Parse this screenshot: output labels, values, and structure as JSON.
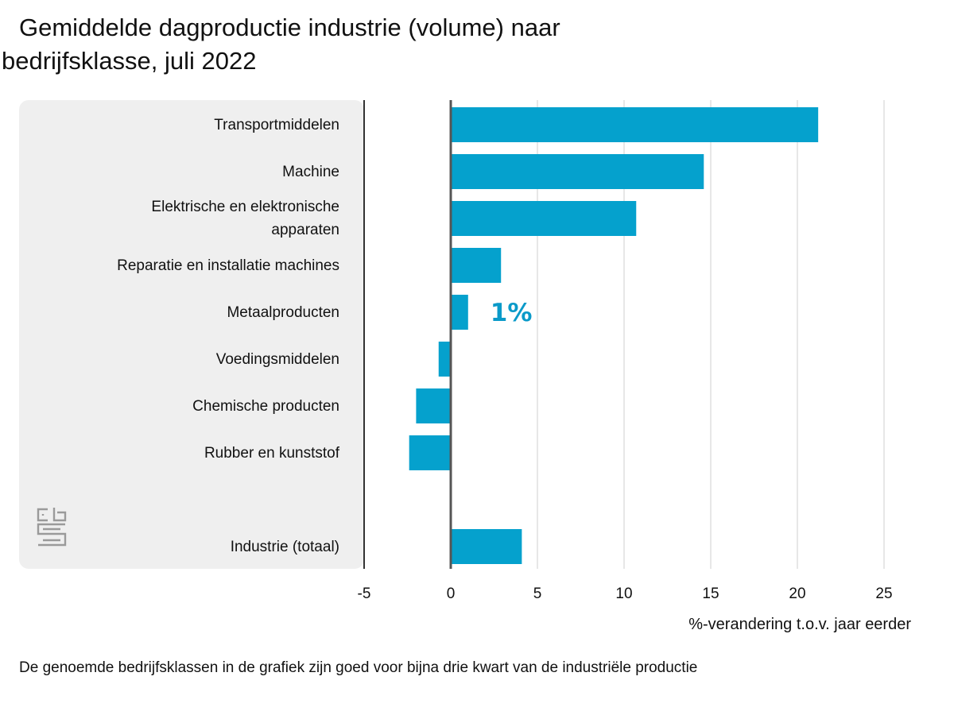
{
  "title_line1": "Gemiddelde dagproductie industrie (volume) naar",
  "title_line2": "bedrijfsklasse, juli 2022",
  "footnote": "De genoemde bedrijfsklassen in de grafiek zijn goed voor bijna drie kwart van de industriële productie",
  "logo_icon": "cbs-logo-icon",
  "chart_data": {
    "type": "bar",
    "orientation": "horizontal",
    "categories": [
      "Transportmiddelen",
      "Machine",
      "Elektrische en elektronische apparaten",
      "Reparatie en installatie machines",
      "Metaalproducten",
      "Voedingsmiddelen",
      "Chemische producten",
      "Rubber en kunststof",
      "",
      "Industrie (totaal)"
    ],
    "category_lines": [
      [
        "Transportmiddelen"
      ],
      [
        "Machine"
      ],
      [
        "Elektrische en elektronische",
        "apparaten"
      ],
      [
        "Reparatie en installatie machines"
      ],
      [
        "Metaalproducten"
      ],
      [
        "Voedingsmiddelen"
      ],
      [
        "Chemische producten"
      ],
      [
        "Rubber en kunststof"
      ],
      [],
      [
        "Industrie (totaal)"
      ]
    ],
    "values": [
      21.2,
      14.6,
      10.7,
      2.9,
      1.0,
      -0.7,
      -2.0,
      -2.4,
      null,
      4.1
    ],
    "xlabel": "%-verandering t.o.v. jaar eerder",
    "xlim": [
      -5,
      25
    ],
    "xticks": [
      -5,
      0,
      5,
      10,
      15,
      20,
      25
    ],
    "xtick_labels": [
      "-5",
      "0",
      "5",
      "10",
      "15",
      "20",
      "25"
    ],
    "grid": true,
    "bar_color": "#05a1cd",
    "annotation": {
      "text": "1%",
      "category": "Metaalproducten"
    }
  }
}
